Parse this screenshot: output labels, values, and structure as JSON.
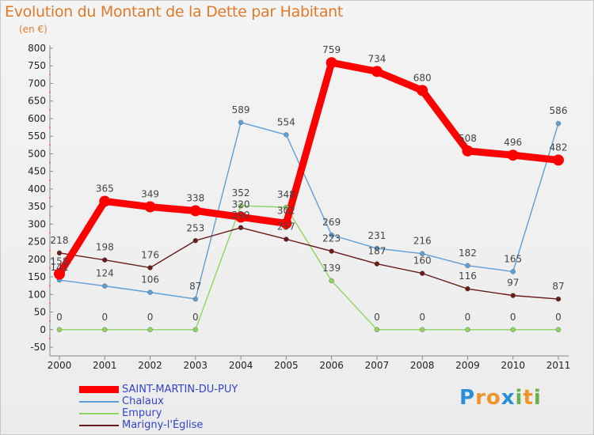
{
  "title": "Evolution du Montant de la Dette par Habitant",
  "unit": "(en €)",
  "logo": {
    "letters": [
      {
        "ch": "P",
        "color": "#2a8fd6"
      },
      {
        "ch": "r",
        "color": "#f0932b"
      },
      {
        "ch": "o",
        "color": "#f0932b"
      },
      {
        "ch": "x",
        "color": "#2a8fd6"
      },
      {
        "ch": "i",
        "color": "#6ab04c"
      },
      {
        "ch": "t",
        "color": "#f0932b"
      },
      {
        "ch": "i",
        "color": "#6ab04c"
      }
    ]
  },
  "chart_data": {
    "type": "line",
    "title": "Evolution du Montant de la Dette par Habitant",
    "ylabel": "(en €)",
    "xlabel": "",
    "ylim": [
      -50,
      800
    ],
    "ytick_step": 50,
    "grid": false,
    "legend_position": "bottom-left",
    "categories": [
      "2000",
      "2001",
      "2002",
      "2003",
      "2004",
      "2005",
      "2006",
      "2007",
      "2008",
      "2009",
      "2010",
      "2011"
    ],
    "series": [
      {
        "name": "SAINT-MARTIN-DU-PUY",
        "color": "#ff0000",
        "values": [
          158,
          365,
          349,
          338,
          320,
          302,
          759,
          734,
          680,
          508,
          496,
          482
        ]
      },
      {
        "name": "Chalaux",
        "color": "#5e9fd8",
        "values": [
          141,
          124,
          106,
          87,
          589,
          554,
          269,
          231,
          216,
          182,
          165,
          586
        ]
      },
      {
        "name": "Empury",
        "color": "#8fd460",
        "values": [
          0,
          0,
          0,
          0,
          352,
          348,
          139,
          0,
          0,
          0,
          0,
          0
        ]
      },
      {
        "name": "Marigny-l'Église",
        "color": "#6b1a1a",
        "values": [
          218,
          198,
          176,
          253,
          290,
          257,
          223,
          187,
          160,
          116,
          97,
          87
        ]
      }
    ]
  }
}
